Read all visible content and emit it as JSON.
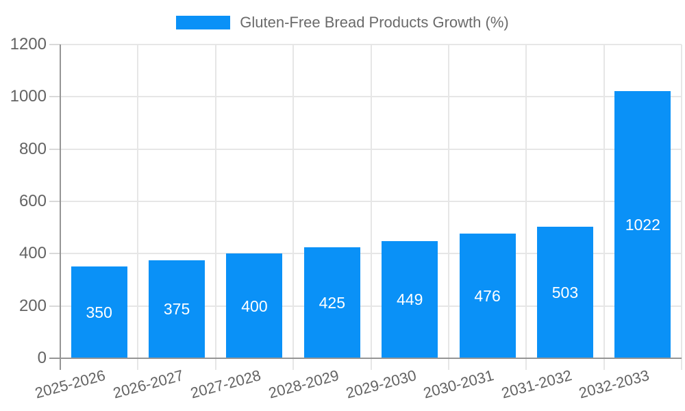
{
  "legend": {
    "label": "Gluten-Free Bread Products Growth (%)"
  },
  "chart_data": {
    "type": "bar",
    "title": "Gluten-Free Bread Products Growth (%)",
    "categories": [
      "2025-2026",
      "2026-2027",
      "2027-2028",
      "2028-2029",
      "2029-2030",
      "2030-2031",
      "2031-2032",
      "2032-2033"
    ],
    "values": [
      350,
      375,
      400,
      425,
      449,
      476,
      503,
      1022
    ],
    "value_labels": [
      "350",
      "375",
      "400",
      "425",
      "449",
      "476",
      "503",
      "1022"
    ],
    "series_name": "Gluten-Free Bread Products Growth (%)",
    "xlabel": "",
    "ylabel": "",
    "ylim": [
      0,
      1200
    ],
    "yticks": [
      0,
      200,
      400,
      600,
      800,
      1000,
      1200
    ],
    "grid": true,
    "legend_position": "top",
    "colors": {
      "bar": "#0a91f7",
      "value_label": "#ffffff",
      "axis_text": "#636363",
      "legend_text": "#6a6a6a",
      "gridline": "#e6e6e6",
      "tick": "#d9d9d9",
      "axis_line": "#949494"
    }
  }
}
